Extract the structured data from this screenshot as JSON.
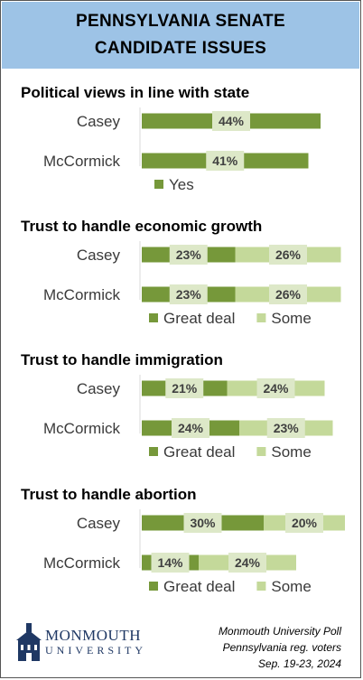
{
  "title": {
    "line1": "PENNSYLVANIA SENATE",
    "line2": "CANDIDATE ISSUES"
  },
  "colors": {
    "great_deal": "#76983a",
    "some": "#c4d99a",
    "label_box": "#dde8c8",
    "header_bg": "#9dc3e6",
    "brand": "#1f3864"
  },
  "chart_data": [
    {
      "type": "bar",
      "orientation": "horizontal",
      "title": "Political views in line with state",
      "categories": [
        "Casey",
        "McCormick"
      ],
      "series": [
        {
          "name": "Yes",
          "values": [
            44,
            41
          ]
        }
      ],
      "legend": "bottom"
    },
    {
      "type": "bar",
      "orientation": "horizontal",
      "stacked": true,
      "title": "Trust to handle economic growth",
      "categories": [
        "Casey",
        "McCormick"
      ],
      "series": [
        {
          "name": "Great deal",
          "values": [
            23,
            23
          ]
        },
        {
          "name": "Some",
          "values": [
            26,
            26
          ]
        }
      ],
      "legend": "bottom"
    },
    {
      "type": "bar",
      "orientation": "horizontal",
      "stacked": true,
      "title": "Trust to handle immigration",
      "categories": [
        "Casey",
        "McCormick"
      ],
      "series": [
        {
          "name": "Great deal",
          "values": [
            21,
            24
          ]
        },
        {
          "name": "Some",
          "values": [
            24,
            23
          ]
        }
      ],
      "legend": "bottom"
    },
    {
      "type": "bar",
      "orientation": "horizontal",
      "stacked": true,
      "title": "Trust to handle abortion",
      "categories": [
        "Casey",
        "McCormick"
      ],
      "series": [
        {
          "name": "Great deal",
          "values": [
            30,
            14
          ]
        },
        {
          "name": "Some",
          "values": [
            20,
            24
          ]
        }
      ],
      "legend": "bottom"
    }
  ],
  "footer": {
    "brand_name": "MONMOUTH",
    "brand_sub": "UNIVERSITY",
    "source_line1": "Monmouth University Poll",
    "source_line2": "Pennsylvania reg. voters",
    "source_line3": "Sep. 19-23, 2024"
  }
}
